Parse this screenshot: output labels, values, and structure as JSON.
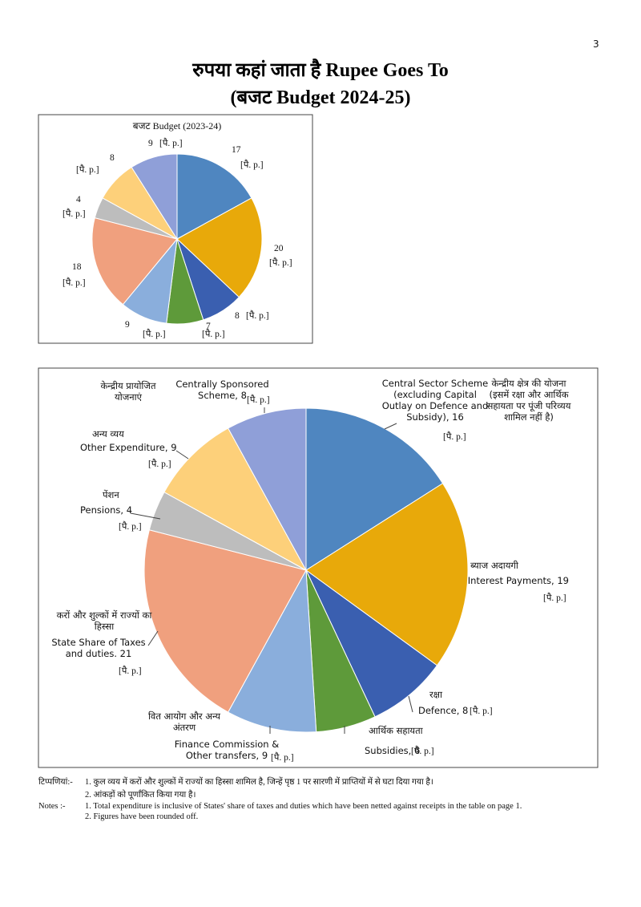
{
  "page_number": "3",
  "title": "रुपया कहां जाता है Rupee Goes To",
  "subtitle": "(बजट Budget 2024-25)",
  "chart_data": [
    {
      "type": "pie",
      "title": "बजट Budget (2023-24)",
      "unit_label": "[पै. p.]",
      "values": [
        17,
        20,
        8,
        7,
        9,
        18,
        4,
        8,
        9
      ],
      "colors": [
        "#4f86c0",
        "#e8a90a",
        "#3a5fb0",
        "#5e9a3a",
        "#8aaedc",
        "#f0a07e",
        "#bdbdbd",
        "#fdd07a",
        "#8f9fd8"
      ]
    },
    {
      "type": "pie",
      "unit_label": "[पै. p.]",
      "categories": [
        "Central Sector Scheme (excluding Capital Outlay on Defence and Subsidy), 16",
        "Interest Payments, 19",
        "Defence, 8",
        "Subsidies, 6",
        "Finance Commission & Other transfers, 9",
        "State Share of Taxes and duties. 21",
        "Pensions, 4",
        "Other Expenditure, 9",
        "Centrally Sponsored Scheme, 8"
      ],
      "categories_hi": [
        "केन्द्रीय क्षेत्र की योजना (इसमें रक्षा और आर्थिक सहायता पर पूंजी परिव्यय शामिल नहीं है)",
        "ब्याज अदायगी",
        "रक्षा",
        "आर्थिक सहायता",
        "वित आयोग और अन्य अंतरण",
        "करों और शुल्कों में राज्यों का हिस्सा",
        "पेंशन",
        "अन्य व्यय",
        "केन्द्रीय प्रायोजित योजनाएं"
      ],
      "values": [
        16,
        19,
        8,
        6,
        9,
        21,
        4,
        9,
        8
      ],
      "colors": [
        "#4f86c0",
        "#e8a90a",
        "#3a5fb0",
        "#5e9a3a",
        "#8aaedc",
        "#f0a07e",
        "#bdbdbd",
        "#fdd07a",
        "#8f9fd8"
      ]
    }
  ],
  "notes": {
    "label_hi": "टिप्पणियां:-",
    "items_hi": [
      "1. कुल व्यय में करों और शुल्कों में राज्यों का हिस्सा शामिल है, जिन्हें पृष्ठ 1 पर सारणी में प्राप्तियों में से घटा दिया गया है।",
      "2. आंकड़ों को पूर्णांकित किया गया है।"
    ],
    "label_en": "Notes :-",
    "items_en": [
      "1. Total expenditure is inclusive of States' share of taxes and duties which have been netted against receipts in the table on page 1.",
      "2. Figures have been rounded off."
    ]
  }
}
